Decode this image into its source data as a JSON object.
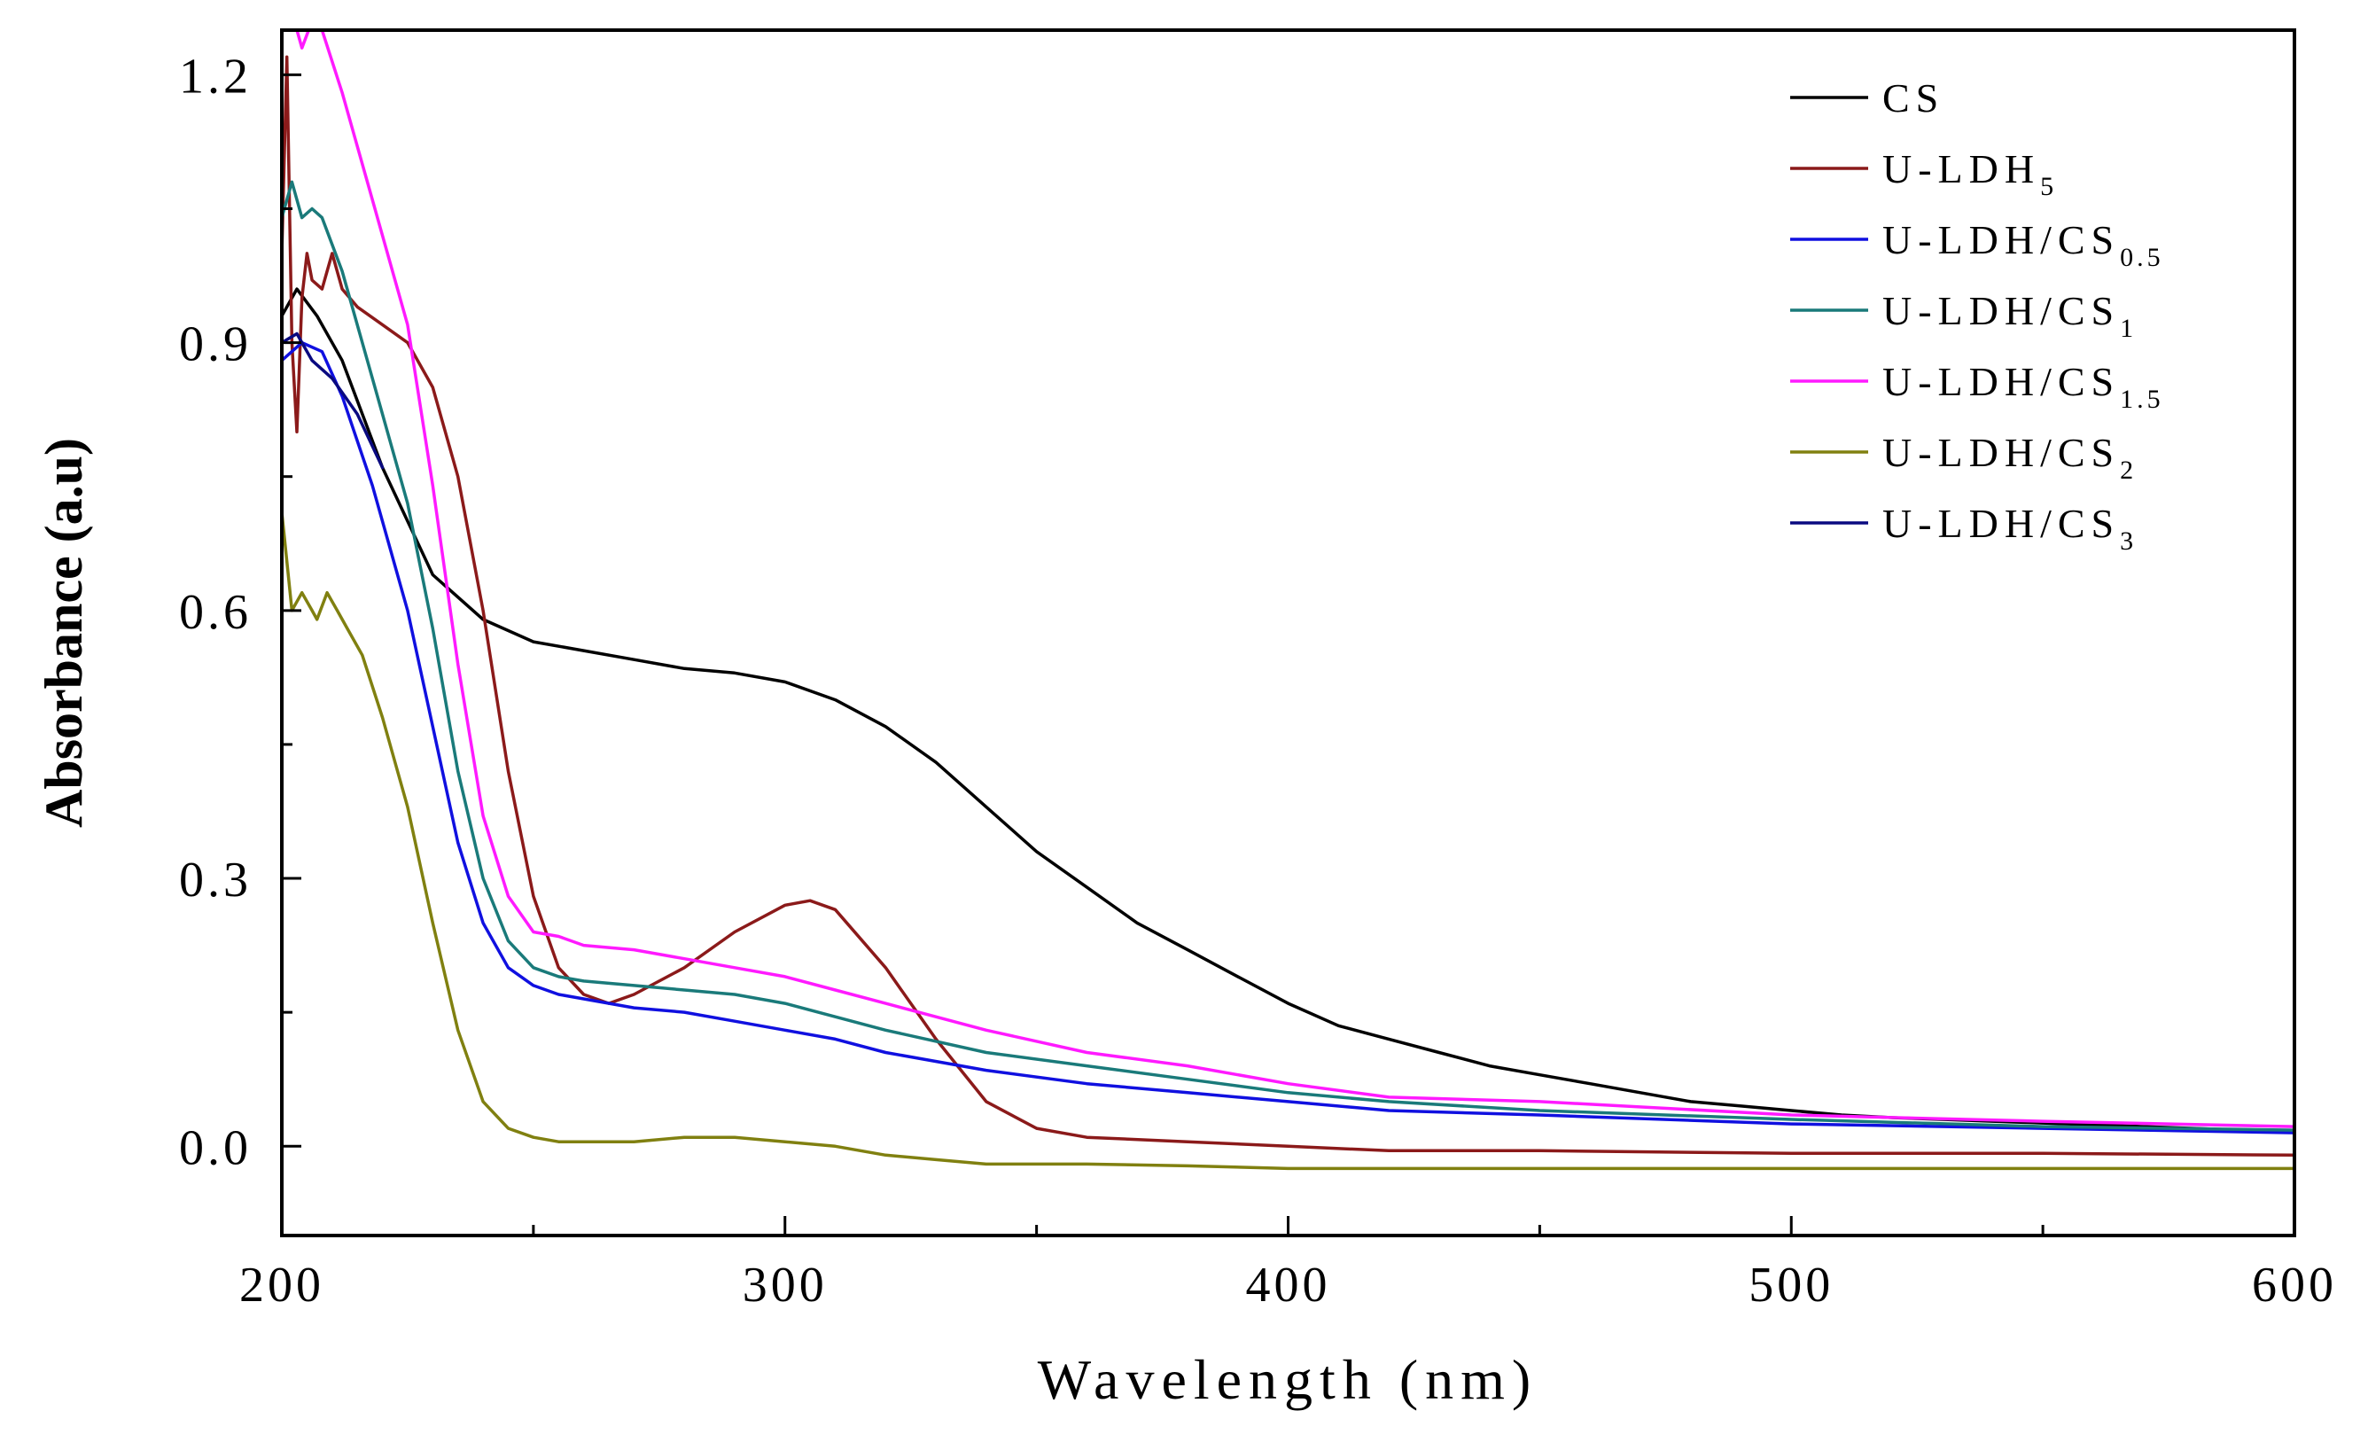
{
  "chart_data": {
    "type": "line",
    "title": "",
    "xlabel": "Wavelength (nm)",
    "ylabel": "Absorbance (a.u)",
    "xlim": [
      200,
      600
    ],
    "ylim": [
      -0.1,
      1.25
    ],
    "xticks": [
      200,
      300,
      400,
      500,
      600
    ],
    "xtick_labels": [
      "200",
      "300",
      "400",
      "500",
      "600"
    ],
    "yticks": [
      0.0,
      0.3,
      0.6,
      0.9,
      1.2
    ],
    "ytick_labels": [
      "0.0",
      "0.3",
      "0.6",
      "0.9",
      "1.2"
    ],
    "legend_position": "top-right",
    "grid": false,
    "series": [
      {
        "name": "CS",
        "label_main": "CS",
        "label_sub": "",
        "color": "#000000",
        "x": [
          200,
          203,
          207,
          212,
          220,
          230,
          240,
          250,
          260,
          270,
          280,
          290,
          300,
          310,
          320,
          330,
          340,
          350,
          360,
          370,
          380,
          390,
          400,
          410,
          420,
          430,
          440,
          450,
          460,
          470,
          480,
          490,
          500,
          510,
          520,
          530,
          540,
          550,
          560,
          570,
          580,
          590,
          600
        ],
        "values": [
          0.93,
          0.96,
          0.93,
          0.88,
          0.76,
          0.64,
          0.59,
          0.565,
          0.555,
          0.545,
          0.535,
          0.53,
          0.52,
          0.5,
          0.47,
          0.43,
          0.38,
          0.33,
          0.29,
          0.25,
          0.22,
          0.19,
          0.16,
          0.135,
          0.12,
          0.105,
          0.09,
          0.08,
          0.07,
          0.06,
          0.05,
          0.045,
          0.04,
          0.035,
          0.032,
          0.03,
          0.028,
          0.026,
          0.024,
          0.022,
          0.02,
          0.018,
          0.016
        ]
      },
      {
        "name": "U-LDH5",
        "label_main": "U-LDH",
        "label_sub": "5",
        "color": "#8b1a1a",
        "x": [
          200,
          201,
          202,
          203,
          204,
          205,
          206,
          208,
          210,
          212,
          215,
          220,
          225,
          230,
          235,
          240,
          245,
          250,
          255,
          260,
          265,
          270,
          280,
          290,
          300,
          305,
          310,
          320,
          330,
          340,
          350,
          360,
          380,
          400,
          420,
          450,
          500,
          550,
          600
        ],
        "values": [
          1.0,
          1.22,
          0.9,
          0.8,
          0.95,
          1.0,
          0.97,
          0.96,
          1.0,
          0.96,
          0.94,
          0.92,
          0.9,
          0.85,
          0.75,
          0.6,
          0.42,
          0.28,
          0.2,
          0.17,
          0.16,
          0.17,
          0.2,
          0.24,
          0.27,
          0.275,
          0.265,
          0.2,
          0.12,
          0.05,
          0.02,
          0.01,
          0.005,
          0.0,
          -0.005,
          -0.005,
          -0.008,
          -0.008,
          -0.01
        ]
      },
      {
        "name": "U-LDH/CS0.5",
        "label_main": "U-LDH/CS",
        "label_sub": "0.5",
        "color": "#1010e0",
        "x": [
          200,
          204,
          208,
          212,
          218,
          225,
          230,
          235,
          240,
          245,
          250,
          255,
          260,
          270,
          280,
          290,
          300,
          310,
          320,
          340,
          360,
          380,
          400,
          420,
          450,
          500,
          550,
          600
        ],
        "values": [
          0.88,
          0.9,
          0.89,
          0.84,
          0.74,
          0.6,
          0.47,
          0.34,
          0.25,
          0.2,
          0.18,
          0.17,
          0.165,
          0.155,
          0.15,
          0.14,
          0.13,
          0.12,
          0.105,
          0.085,
          0.07,
          0.06,
          0.05,
          0.04,
          0.035,
          0.025,
          0.02,
          0.015
        ]
      },
      {
        "name": "U-LDH/CS1",
        "label_main": "U-LDH/CS",
        "label_sub": "1",
        "color": "#1a7a7a",
        "x": [
          200,
          202,
          204,
          206,
          208,
          212,
          218,
          225,
          230,
          235,
          240,
          245,
          250,
          255,
          260,
          270,
          280,
          290,
          300,
          310,
          320,
          340,
          360,
          380,
          400,
          420,
          450,
          500,
          550,
          600
        ],
        "values": [
          1.04,
          1.08,
          1.04,
          1.05,
          1.04,
          0.98,
          0.86,
          0.72,
          0.58,
          0.42,
          0.3,
          0.23,
          0.2,
          0.19,
          0.185,
          0.18,
          0.175,
          0.17,
          0.16,
          0.145,
          0.13,
          0.105,
          0.09,
          0.075,
          0.06,
          0.05,
          0.04,
          0.03,
          0.022,
          0.018
        ]
      },
      {
        "name": "U-LDH/CS1.5",
        "label_main": "U-LDH/CS",
        "label_sub": "1.5",
        "color": "#ff1aff",
        "x": [
          200,
          202,
          204,
          206,
          208,
          212,
          218,
          225,
          230,
          235,
          240,
          245,
          250,
          255,
          260,
          270,
          280,
          290,
          300,
          310,
          320,
          340,
          360,
          380,
          400,
          420,
          450,
          500,
          550,
          600
        ],
        "values": [
          1.25,
          1.27,
          1.23,
          1.26,
          1.25,
          1.18,
          1.06,
          0.92,
          0.74,
          0.54,
          0.37,
          0.28,
          0.24,
          0.235,
          0.225,
          0.22,
          0.21,
          0.2,
          0.19,
          0.175,
          0.16,
          0.13,
          0.105,
          0.09,
          0.07,
          0.055,
          0.05,
          0.035,
          0.028,
          0.022
        ]
      },
      {
        "name": "U-LDH/CS2",
        "label_main": "U-LDH/CS",
        "label_sub": "2",
        "color": "#808010",
        "x": [
          200,
          202,
          204,
          206,
          207,
          209,
          211,
          213,
          216,
          220,
          225,
          230,
          235,
          240,
          245,
          250,
          255,
          260,
          270,
          280,
          290,
          300,
          310,
          320,
          330,
          340,
          360,
          380,
          400,
          420,
          450,
          500,
          550,
          600
        ],
        "values": [
          0.71,
          0.6,
          0.62,
          0.6,
          0.59,
          0.62,
          0.6,
          0.58,
          0.55,
          0.48,
          0.38,
          0.25,
          0.13,
          0.05,
          0.02,
          0.01,
          0.005,
          0.005,
          0.005,
          0.01,
          0.01,
          0.005,
          0.0,
          -0.01,
          -0.015,
          -0.02,
          -0.02,
          -0.022,
          -0.025,
          -0.025,
          -0.025,
          -0.025,
          -0.025,
          -0.025
        ]
      },
      {
        "name": "U-LDH/CS3",
        "label_main": "U-LDH/CS",
        "label_sub": "3",
        "color": "#0a0a80",
        "x": [
          200,
          203,
          206,
          210,
          215,
          220
        ],
        "values": [
          0.9,
          0.91,
          0.88,
          0.86,
          0.82,
          0.76
        ]
      }
    ]
  }
}
